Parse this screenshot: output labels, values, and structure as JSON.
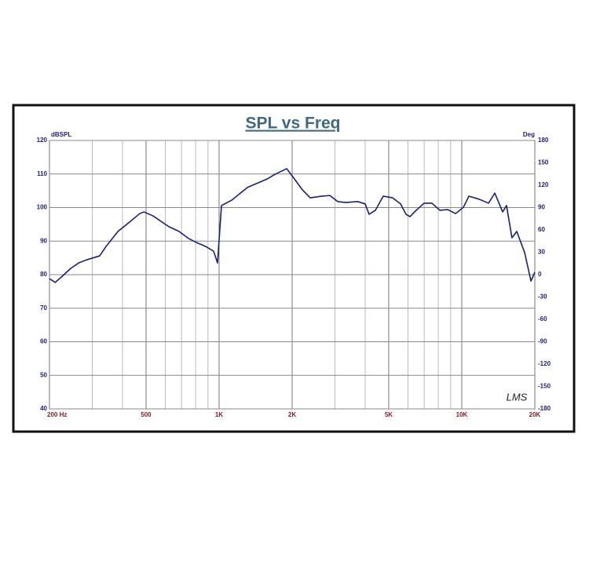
{
  "chart_data": {
    "type": "line",
    "title": "SPL vs Freq",
    "y_label": "dBSPL",
    "y2_label": "Deg",
    "logo": "LMS",
    "x_log": true,
    "grid": true,
    "xlim": [
      200,
      20000
    ],
    "xticks": [
      {
        "value": 200,
        "label": "200 Hz"
      },
      500,
      {
        "value": 1000,
        "label": "1K"
      },
      {
        "value": 2000,
        "label": "2K"
      },
      {
        "value": 5000,
        "label": "5K"
      },
      {
        "value": 10000,
        "label": "10K"
      },
      {
        "value": 20000,
        "label": "20K"
      }
    ],
    "ylim": [
      40,
      120
    ],
    "yticks": [
      40,
      50,
      60,
      70,
      80,
      90,
      100,
      110,
      120
    ],
    "y2lim": [
      -180,
      180
    ],
    "y2ticks": [
      -180,
      -150,
      -120,
      -90,
      -60,
      -30,
      0,
      30,
      60,
      90,
      120,
      150,
      180
    ],
    "x": [
      200,
      211,
      224,
      245,
      264,
      284,
      322,
      342,
      383,
      428,
      471,
      490,
      535,
      621,
      684,
      748,
      806,
      881,
      949,
      985,
      1023,
      1127,
      1308,
      1576,
      1698,
      1898,
      2045,
      2204,
      2374,
      2655,
      2860,
      3082,
      3320,
      3716,
      4000,
      4150,
      4408,
      4746,
      5190,
      5593,
      5891,
      6117,
      6490,
      6996,
      7539,
      8123,
      8752,
      9430,
      10160,
      10700,
      11780,
      12890,
      13680,
      14740,
      15290,
      16100,
      16850,
      18160,
      19280,
      20000
    ],
    "series": [
      {
        "name": "SPL",
        "color": "#1a1f7a",
        "values": [
          78.8,
          77.7,
          79.3,
          81.9,
          83.5,
          84.4,
          85.6,
          88.4,
          92.9,
          95.7,
          98.2,
          98.7,
          97.5,
          94.3,
          92.9,
          90.8,
          89.6,
          88.4,
          87.0,
          83.5,
          100.6,
          102.2,
          106.0,
          108.5,
          109.9,
          111.6,
          108.5,
          105.3,
          102.9,
          103.4,
          103.6,
          101.8,
          101.5,
          101.8,
          101.1,
          98.0,
          99.2,
          103.4,
          102.9,
          101.1,
          98.0,
          97.3,
          99.2,
          101.3,
          101.3,
          99.2,
          99.4,
          98.2,
          100.1,
          103.4,
          102.5,
          101.3,
          104.3,
          98.7,
          100.6,
          91.0,
          92.9,
          86.6,
          78.1,
          80.7
        ]
      }
    ]
  }
}
